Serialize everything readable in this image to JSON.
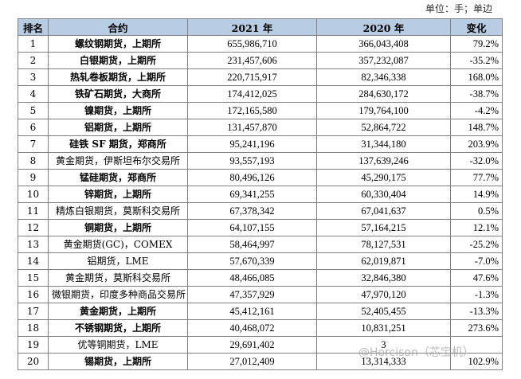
{
  "unit_label": "单位：手；单边",
  "headers": [
    "排名",
    "合约",
    "2021 年",
    "2020 年",
    "变化"
  ],
  "rows": [
    {
      "rank": "1",
      "name": "螺纹钢期货，上期所",
      "y2021": "655,986,710",
      "y2020": "366,043,408",
      "change": "79.2%"
    },
    {
      "rank": "2",
      "name": "白银期货，上期所",
      "y2021": "231,457,606",
      "y2020": "357,232,087",
      "change": "-35.2%"
    },
    {
      "rank": "3",
      "name": "热轧卷板期货，上期所",
      "y2021": "220,715,917",
      "y2020": "82,346,338",
      "change": "168.0%"
    },
    {
      "rank": "4",
      "name": "铁矿石期货，大商所",
      "y2021": "174,412,025",
      "y2020": "284,630,172",
      "change": "-38.7%"
    },
    {
      "rank": "5",
      "name": "镍期货，上期所",
      "y2021": "172,165,580",
      "y2020": "179,764,100",
      "change": "-4.2%"
    },
    {
      "rank": "6",
      "name": "铝期货，上期所",
      "y2021": "131,457,870",
      "y2020": "52,864,722",
      "change": "148.7%"
    },
    {
      "rank": "7",
      "name": "硅铁 SF 期货，郑商所",
      "y2021": "95,241,196",
      "y2020": "31,344,180",
      "change": "203.9%"
    },
    {
      "rank": "8",
      "name": "黄金期货，伊斯坦布尔交易所",
      "y2021": "93,557,193",
      "y2020": "137,639,246",
      "change": "-32.0%"
    },
    {
      "rank": "9",
      "name": "锰硅期货，郑商所",
      "y2021": "80,496,126",
      "y2020": "45,290,175",
      "change": "77.7%"
    },
    {
      "rank": "10",
      "name": "锌期货，上期所",
      "y2021": "69,341,255",
      "y2020": "60,330,404",
      "change": "14.9%"
    },
    {
      "rank": "11",
      "name": "精炼白银期货，莫斯科交易所",
      "y2021": "67,378,342",
      "y2020": "67,041,637",
      "change": "0.5%"
    },
    {
      "rank": "12",
      "name": "铜期货，上期所",
      "y2021": "64,107,155",
      "y2020": "57,164,215",
      "change": "12.1%"
    },
    {
      "rank": "13",
      "name": "黄金期货(GC)，COMEX",
      "y2021": "58,464,997",
      "y2020": "78,127,531",
      "change": "-25.2%"
    },
    {
      "rank": "14",
      "name": "铝期货，LME",
      "y2021": "57,670,339",
      "y2020": "62,019,871",
      "change": "-7.0%"
    },
    {
      "rank": "15",
      "name": "黄金期货，莫斯科交易所",
      "y2021": "48,466,085",
      "y2020": "32,846,380",
      "change": "47.6%"
    },
    {
      "rank": "16",
      "name": "微银期货，印度多种商品交易所",
      "y2021": "47,357,929",
      "y2020": "47,970,120",
      "change": "-1.3%"
    },
    {
      "rank": "17",
      "name": "黄金期货，上期所",
      "y2021": "45,412,161",
      "y2020": "52,405,455",
      "change": "-13.3%"
    },
    {
      "rank": "18",
      "name": "不锈钢期货，上期所",
      "y2021": "40,468,072",
      "y2020": "10,831,251",
      "change": "273.6%"
    },
    {
      "rank": "19",
      "name": "优等铜期货，LME",
      "y2021": "29,691,402",
      "y2020": "3",
      "change": ""
    },
    {
      "rank": "20",
      "name": "锡期货，上期所",
      "y2021": "27,012,409",
      "y2020": "13,314,333",
      "change": "102.9%"
    }
  ],
  "watermark": "@Horcison（芯宝机）"
}
